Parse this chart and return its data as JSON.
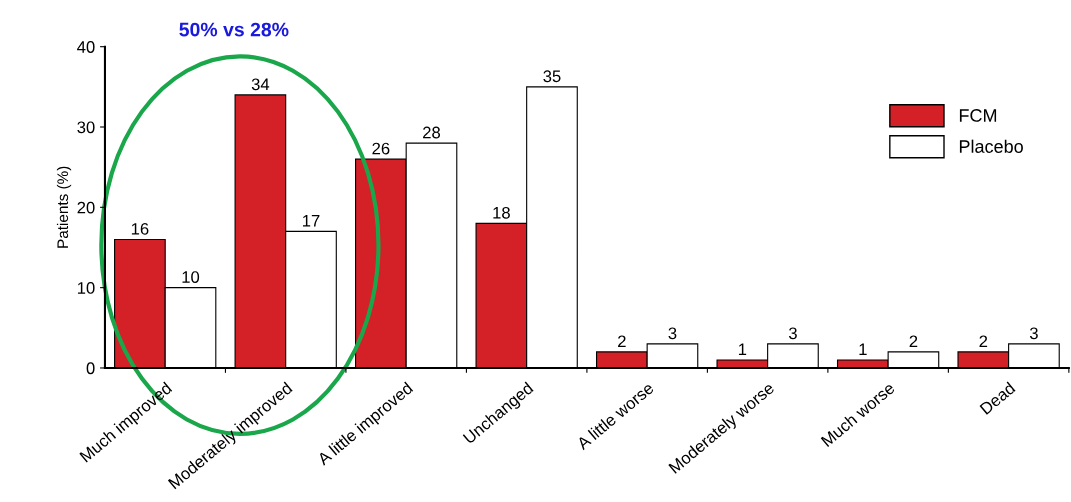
{
  "chart_data": {
    "type": "bar",
    "ylabel": "Patients (%)",
    "categories": [
      "Much improved",
      "Moderately improved",
      "A little improved",
      "Unchanged",
      "A little worse",
      "Moderately worse",
      "Much worse",
      "Dead"
    ],
    "series": [
      {
        "name": "FCM",
        "color": "#d42027",
        "values": [
          16,
          34,
          26,
          18,
          2,
          1,
          1,
          2
        ]
      },
      {
        "name": "Placebo",
        "color": "#ffffff",
        "values": [
          10,
          17,
          28,
          35,
          3,
          3,
          2,
          3
        ]
      }
    ],
    "ylim": [
      0,
      40
    ],
    "yticks": [
      0,
      10,
      20,
      30,
      40
    ],
    "grid": false,
    "legend": "top right",
    "data_labels": true,
    "annotations": [
      "50% vs 28%"
    ]
  }
}
